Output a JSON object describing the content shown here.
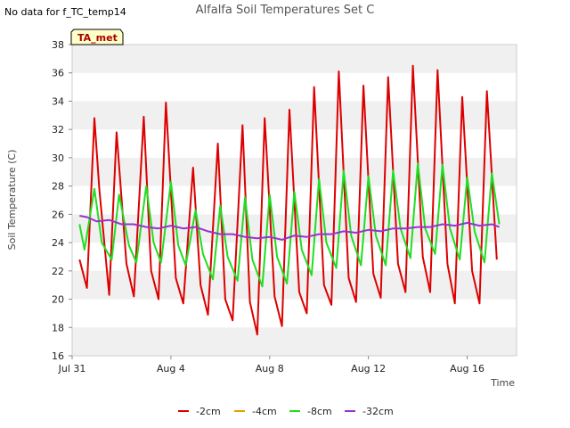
{
  "chart_data": {
    "type": "line",
    "title": "Alfalfa Soil Temperatures Set C",
    "no_data_note": "No data for f_TC_temp14",
    "site_badge": "TA_met",
    "xlabel": "Time",
    "ylabel": "Soil Temperature (C)",
    "x_unit": "days since Jul 31",
    "xlim": [
      0,
      18
    ],
    "ylim": [
      16,
      38
    ],
    "x_ticks": [
      {
        "value": 0,
        "label": "Jul 31"
      },
      {
        "value": 4,
        "label": "Aug 4"
      },
      {
        "value": 8,
        "label": "Aug 8"
      },
      {
        "value": 12,
        "label": "Aug 12"
      },
      {
        "value": 16,
        "label": "Aug 16"
      }
    ],
    "y_ticks": [
      16,
      18,
      20,
      22,
      24,
      26,
      28,
      30,
      32,
      34,
      36,
      38
    ],
    "grid": "horizontal alternating bands",
    "legend_position": "bottom-center",
    "series": [
      {
        "name": "-2cm",
        "color": "#dd0000",
        "x": [
          0.3,
          0.6,
          0.9,
          1.1,
          1.5,
          1.8,
          2.2,
          2.5,
          2.9,
          3.2,
          3.5,
          3.8,
          4.2,
          4.5,
          4.9,
          5.2,
          5.5,
          5.9,
          6.2,
          6.5,
          6.9,
          7.2,
          7.5,
          7.8,
          8.2,
          8.5,
          8.8,
          9.2,
          9.5,
          9.8,
          10.2,
          10.5,
          10.8,
          11.2,
          11.5,
          11.8,
          12.2,
          12.5,
          12.8,
          13.2,
          13.5,
          13.8,
          14.2,
          14.5,
          14.8,
          15.2,
          15.5,
          15.8,
          16.2,
          16.5,
          16.8,
          17.2
        ],
        "values": [
          22.8,
          20.8,
          32.8,
          27.8,
          20.3,
          31.8,
          22.5,
          20.2,
          32.9,
          22.0,
          20.0,
          33.9,
          21.5,
          19.7,
          29.3,
          21.0,
          18.9,
          31.0,
          20.0,
          18.5,
          32.3,
          19.8,
          17.5,
          32.8,
          20.2,
          18.1,
          33.4,
          20.5,
          19.0,
          35.0,
          21.0,
          19.6,
          36.1,
          21.5,
          19.8,
          35.1,
          21.8,
          20.1,
          35.7,
          22.5,
          20.5,
          36.5,
          23.0,
          20.5,
          36.2,
          22.5,
          19.7,
          34.3,
          22.0,
          19.7,
          34.7,
          22.8
        ]
      },
      {
        "name": "-4cm",
        "color": "#e69f00",
        "x": [],
        "values": []
      },
      {
        "name": "-8cm",
        "color": "#22dd22",
        "x": [
          0.3,
          0.5,
          0.9,
          1.2,
          1.6,
          1.9,
          2.3,
          2.6,
          3.0,
          3.3,
          3.6,
          4.0,
          4.3,
          4.6,
          5.0,
          5.3,
          5.7,
          6.0,
          6.3,
          6.7,
          7.0,
          7.3,
          7.7,
          8.0,
          8.3,
          8.7,
          9.0,
          9.3,
          9.7,
          10.0,
          10.3,
          10.7,
          11.0,
          11.3,
          11.7,
          12.0,
          12.3,
          12.7,
          13.0,
          13.3,
          13.7,
          14.0,
          14.3,
          14.7,
          15.0,
          15.3,
          15.7,
          16.0,
          16.3,
          16.7,
          17.0,
          17.3
        ],
        "values": [
          25.3,
          23.5,
          27.8,
          24.0,
          22.8,
          27.4,
          23.8,
          22.6,
          28.0,
          24.0,
          22.6,
          28.3,
          23.8,
          22.4,
          26.3,
          23.2,
          21.4,
          26.6,
          23.0,
          21.3,
          27.2,
          22.8,
          20.9,
          27.4,
          23.0,
          21.1,
          27.6,
          23.5,
          21.7,
          28.5,
          24.0,
          22.2,
          29.1,
          24.5,
          22.4,
          28.7,
          24.5,
          22.4,
          29.1,
          25.0,
          22.9,
          29.6,
          25.0,
          23.2,
          29.5,
          25.0,
          22.8,
          28.6,
          24.8,
          22.6,
          28.9,
          25.3
        ]
      },
      {
        "name": "-32cm",
        "color": "#9933cc",
        "x": [
          0.3,
          0.6,
          1.0,
          1.5,
          2.0,
          2.5,
          3.0,
          3.5,
          4.0,
          4.5,
          5.0,
          5.5,
          6.0,
          6.5,
          7.0,
          7.5,
          8.0,
          8.5,
          9.0,
          9.5,
          10.0,
          10.5,
          11.0,
          11.5,
          12.0,
          12.5,
          13.0,
          13.5,
          14.0,
          14.5,
          15.0,
          15.5,
          16.0,
          16.5,
          17.0,
          17.3
        ],
        "values": [
          25.9,
          25.8,
          25.5,
          25.6,
          25.3,
          25.3,
          25.1,
          25.0,
          25.2,
          25.0,
          25.1,
          24.8,
          24.6,
          24.6,
          24.4,
          24.3,
          24.4,
          24.2,
          24.5,
          24.4,
          24.6,
          24.6,
          24.8,
          24.7,
          24.9,
          24.8,
          25.0,
          25.0,
          25.1,
          25.1,
          25.3,
          25.2,
          25.4,
          25.2,
          25.3,
          25.1
        ]
      }
    ]
  }
}
